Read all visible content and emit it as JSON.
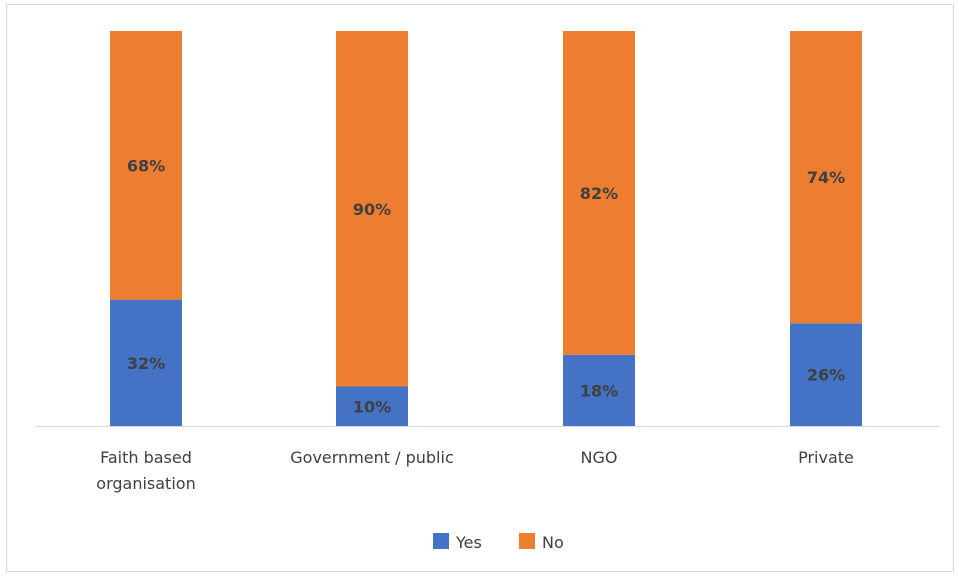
{
  "chart_data": {
    "type": "bar",
    "stacked": true,
    "percent_stacked": true,
    "categories": [
      [
        "Faith based",
        "organisation"
      ],
      [
        "Government / public"
      ],
      [
        "NGO"
      ],
      [
        "Private"
      ]
    ],
    "series": [
      {
        "name": "Yes",
        "color": "#4472c4",
        "values": [
          32,
          10,
          18,
          26
        ],
        "labels": [
          "32%",
          "10%",
          "18%",
          "26%"
        ]
      },
      {
        "name": "No",
        "color": "#ed7d31",
        "values": [
          68,
          90,
          82,
          74
        ],
        "labels": [
          "68%",
          "90%",
          "82%",
          "74%"
        ]
      }
    ],
    "title": "",
    "xlabel": "",
    "ylabel": "",
    "ylim": [
      0,
      100
    ],
    "grid": false,
    "legend": "bottom"
  }
}
